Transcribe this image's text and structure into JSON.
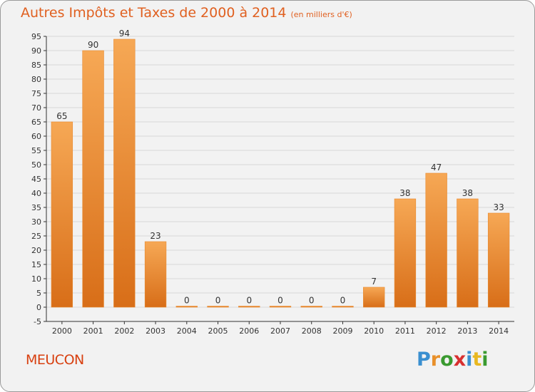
{
  "header": {
    "title": "Autres Impôts et Taxes de 2000 à 2014",
    "unit": "(en milliers d'€)"
  },
  "footer": {
    "commune": "MEUCON",
    "logo": "Proxiti"
  },
  "colors": {
    "title": "#e06020",
    "bar_light": "#f6a855",
    "bar_dark": "#d86e18",
    "grid": "#d8d8d8",
    "axis": "#333333"
  },
  "chart_data": {
    "type": "bar",
    "title": "Autres Impôts et Taxes de 2000 à 2014",
    "subtitle": "(en milliers d'€)",
    "xlabel": "",
    "ylabel": "",
    "categories": [
      "2000",
      "2001",
      "2002",
      "2003",
      "2004",
      "2005",
      "2006",
      "2007",
      "2008",
      "2009",
      "2010",
      "2011",
      "2012",
      "2013",
      "2014"
    ],
    "values": [
      65,
      90,
      94,
      23,
      0,
      0,
      0,
      0,
      0,
      0,
      7,
      38,
      47,
      38,
      33
    ],
    "ylim": [
      -5,
      95
    ],
    "yticks": [
      -5,
      0,
      5,
      10,
      15,
      20,
      25,
      30,
      35,
      40,
      45,
      50,
      55,
      60,
      65,
      70,
      75,
      80,
      85,
      90,
      95
    ],
    "grid": true,
    "legend": "none"
  }
}
